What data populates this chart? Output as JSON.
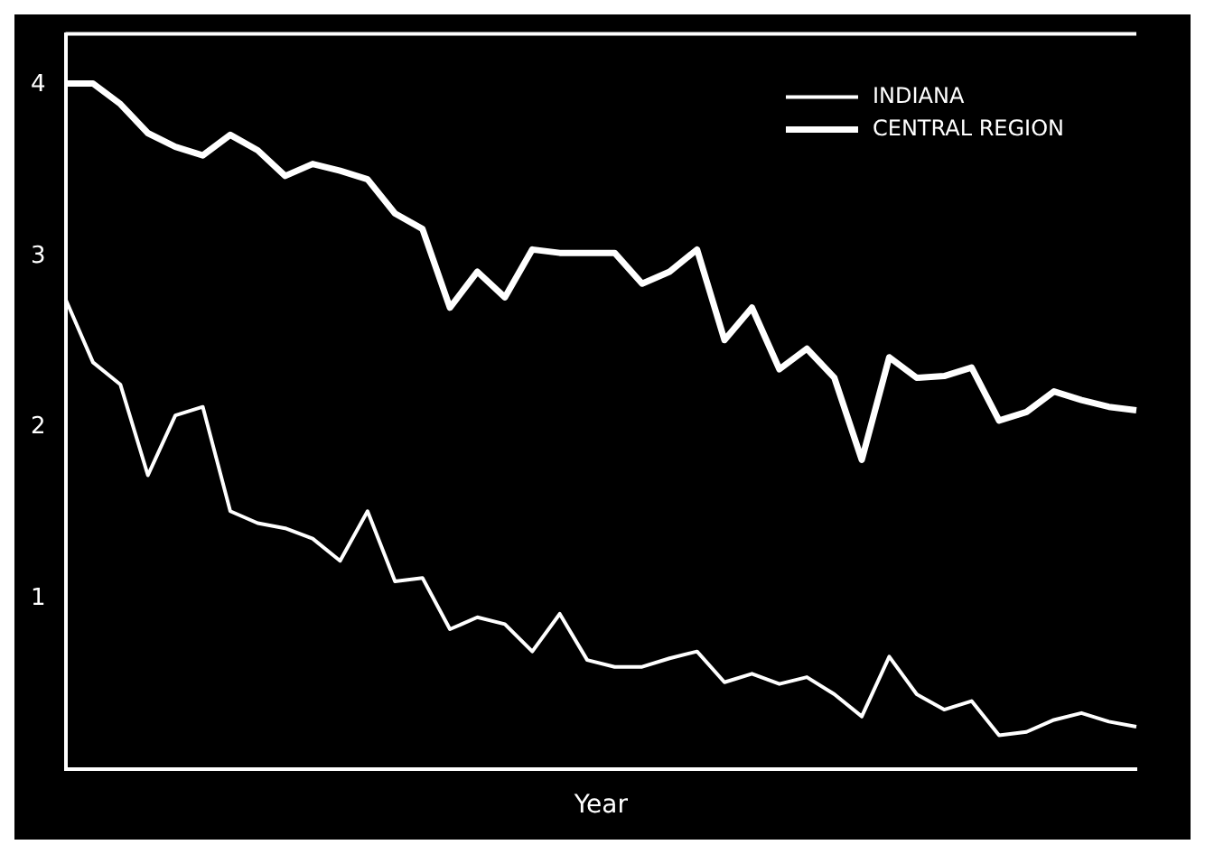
{
  "chart_data": {
    "type": "line",
    "xlabel": "Year",
    "categories": [
      null,
      null,
      null,
      null,
      null,
      null,
      null,
      null,
      null,
      null,
      null,
      null,
      null,
      null,
      null,
      null,
      null,
      null,
      null,
      null,
      null,
      null,
      null,
      null,
      null,
      null,
      null,
      null,
      null,
      null,
      null,
      null,
      null,
      null,
      null,
      null,
      null,
      null,
      null,
      null
    ],
    "series": [
      {
        "name": "INDIANA",
        "color": "#ffffff",
        "values": [
          2.75,
          2.38,
          2.25,
          1.72,
          2.07,
          2.12,
          1.51,
          1.44,
          1.41,
          1.35,
          1.22,
          1.51,
          1.1,
          1.12,
          0.82,
          0.89,
          0.85,
          0.69,
          0.91,
          0.64,
          0.6,
          0.6,
          0.65,
          0.69,
          0.51,
          0.56,
          0.5,
          0.54,
          0.44,
          0.31,
          0.66,
          0.44,
          0.35,
          0.4,
          0.2,
          0.22,
          0.29,
          0.33,
          0.28,
          0.25
        ]
      },
      {
        "name": "CENTRAL REGION",
        "color": "#ffffff",
        "values": [
          4.01,
          4.01,
          3.89,
          3.72,
          3.64,
          3.59,
          3.71,
          3.62,
          3.47,
          3.54,
          3.5,
          3.45,
          3.25,
          3.16,
          2.7,
          2.91,
          2.76,
          3.04,
          3.02,
          3.02,
          3.02,
          2.84,
          2.91,
          3.04,
          2.51,
          2.7,
          2.34,
          2.46,
          2.29,
          1.81,
          2.41,
          2.29,
          2.3,
          2.35,
          2.04,
          2.09,
          2.21,
          2.16,
          2.12,
          2.1
        ]
      }
    ],
    "ylim": [
      0,
      4.3
    ],
    "yticks": [
      1,
      2,
      3,
      4
    ],
    "tick_labels": "y",
    "grid": false,
    "legend": "top right",
    "marker": "none",
    "line_style": "solid"
  }
}
